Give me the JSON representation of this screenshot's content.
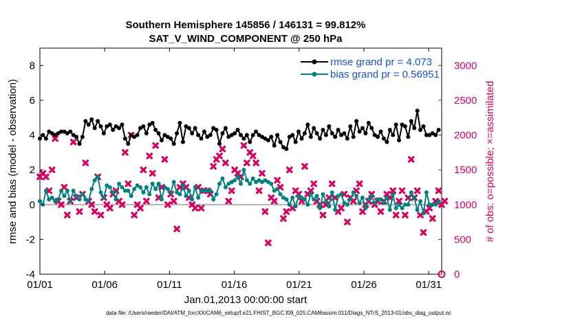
{
  "chart_data": {
    "type": "line",
    "title": "Southern Hemisphere 145856 / 146131 = 99.812%",
    "subtitle": "SAT_V_WIND_COMPONENT @ 250 hPa",
    "xlabel": "Jan.01,2013 00:00:00 start",
    "ylabel": "rmse and bias (model - observation)",
    "y2label": "# of obs: o=possible; ×=assimilated",
    "ylim": [
      -4,
      9
    ],
    "y2lim": [
      0,
      3250
    ],
    "yticks": [
      "-4",
      "-2",
      "0",
      "2",
      "4",
      "6",
      "8"
    ],
    "y2ticks": [
      "0",
      "500",
      "1000",
      "1500",
      "2000",
      "2500",
      "3000"
    ],
    "xticks": [
      "01/01",
      "01/06",
      "01/11",
      "01/16",
      "01/21",
      "01/26",
      "01/31"
    ],
    "xtick_days": [
      1,
      6,
      11,
      16,
      21,
      26,
      31
    ],
    "xlim": [
      1,
      32
    ],
    "footnote": "data file: /Users/raeder/DAI/ATM_forcXX/CAM6_setup/f.e21.FHIST_BGC.f09_025.CAM6assim.011/Diags_NTrS_2013-01/obs_diag_output.nc",
    "colors": {
      "rmse": "#000000",
      "bias": "#008080",
      "obs": "#d6005f",
      "legend_text": "#1a4fd6",
      "zero_line": "#b0b0b0"
    },
    "series": [
      {
        "name": "rmse grand pr = 4.073",
        "values": [
          3.8,
          4.0,
          3.8,
          4.2,
          4.1,
          4.0,
          4.1,
          4.2,
          4.2,
          4.1,
          4.2,
          4.0,
          3.9,
          3.5,
          3.9,
          4.8,
          4.6,
          4.9,
          4.4,
          4.8,
          4.5,
          4.1,
          4.5,
          4.6,
          4.3,
          4.5,
          4.4,
          4.6,
          3.8,
          3.5,
          4.0,
          3.9,
          4.0,
          4.4,
          4.5,
          4.1,
          4.6,
          4.7,
          4.3,
          4.1,
          3.7,
          4.0,
          3.9,
          3.8,
          3.5,
          4.1,
          4.7,
          3.6,
          4.5,
          4.4,
          4.1,
          4.4,
          4.0,
          3.8,
          4.2,
          3.9,
          4.0,
          4.4,
          4.3,
          3.5,
          4.1,
          4.4,
          3.9,
          4.0,
          4.1,
          4.3,
          4.0,
          3.8,
          4.0,
          3.6,
          4.0,
          4.2,
          4.0,
          3.9,
          3.8,
          3.7,
          3.9,
          3.4,
          4.0,
          3.6,
          3.3,
          3.2,
          3.9,
          4.0,
          3.6,
          4.2,
          3.8,
          4.1,
          4.6,
          3.9,
          4.4,
          4.1,
          3.8,
          4.3,
          4.0,
          4.5,
          4.1,
          3.9,
          4.3,
          4.0,
          4.1,
          3.8,
          4.5,
          3.9,
          4.8,
          4.2,
          4.4,
          4.1,
          4.7,
          4.4,
          4.0,
          3.9,
          4.2,
          3.8,
          3.6,
          4.3,
          4.0,
          4.6,
          3.7,
          4.6,
          4.5,
          3.9,
          4.8,
          4.4,
          5.4,
          4.3,
          4.5,
          4.0,
          4.0,
          4.1,
          4.0,
          4.3
        ]
      },
      {
        "name": "bias grand pr = 0.56951",
        "values": [
          0.2,
          0.0,
          0.8,
          0.3,
          0.4,
          0.2,
          0.3,
          0.8,
          0.5,
          0.8,
          0.2,
          0.8,
          0.5,
          0.3,
          0.6,
          0.3,
          0.2,
          0.9,
          1.4,
          1.6,
          0.7,
          0.4,
          1.1,
          1.0,
          0.7,
          0.3,
          1.2,
          1.0,
          0.8,
          0.8,
          0.5,
          0.9,
          1.1,
          1.0,
          0.7,
          1.0,
          0.6,
          1.2,
          0.9,
          1.2,
          0.3,
          1.0,
          0.9,
          0.7,
          1.3,
          0.7,
          0.6,
          1.1,
          0.5,
          0.8,
          0.3,
          1.0,
          0.4,
          0.8,
          0.8,
          0.8,
          0.8,
          0.3,
          0.6,
          1.2,
          1.5,
          1.0,
          1.2,
          1.3,
          1.4,
          1.6,
          1.2,
          2.0,
          1.4,
          1.2,
          1.5,
          1.3,
          1.4,
          1.3,
          1.4,
          1.3,
          1.2,
          0.8,
          0.9,
          0.6,
          0.4,
          0.3,
          0.0,
          0.4,
          -0.1,
          0.5,
          0.4,
          0.3,
          0.0,
          0.6,
          0.3,
          0.5,
          -0.2,
          0.6,
          0.2,
          -0.1,
          0.7,
          -0.3,
          0.5,
          0.6,
          0.1,
          0.0,
          0.3,
          0.7,
          0.5,
          0.1,
          0.4,
          -0.2,
          0.3,
          0.5,
          0.1,
          0.3,
          0.3,
          0.1,
          0.4,
          -0.3,
          0.6,
          -0.2,
          0.0,
          -0.2,
          0.0,
          0.0,
          0.7,
          0.4,
          -0.3,
          0.2,
          -0.5,
          0.7,
          0.0,
          0.0,
          0.0,
          0.2
        ]
      },
      {
        "name": "# of obs assimilated",
        "axis": "right",
        "values": [
          1400,
          1450,
          1400,
          1200,
          1500,
          1950,
          1050,
          1000,
          1250,
          850,
          1050,
          1900,
          1100,
          900,
          1150,
          1600,
          1050,
          1000,
          900,
          1400,
          850,
          1100,
          1000,
          950,
          1150,
          1200,
          1050,
          1000,
          1750,
          1300,
          2000,
          850,
          1000,
          950,
          1500,
          1050,
          1700,
          1450,
          1850,
          1100,
          1250,
          1650,
          1000,
          1150,
          1050,
          650,
          1250,
          1300,
          1250,
          1100,
          1000,
          950,
          1250,
          950,
          1200,
          1200,
          1150,
          1550,
          1650,
          1700,
          1800,
          1600,
          1050,
          1200,
          1500,
          1450,
          1400,
          1850,
          1600,
          1750,
          1700,
          1600,
          1200,
          1450,
          900,
          450,
          1100,
          1050,
          1350,
          1250,
          800,
          900,
          1500,
          950,
          1200,
          1150,
          1050,
          1550,
          1150,
          1200,
          1300,
          1050,
          1000,
          850,
          1000,
          1100,
          1300,
          1100,
          900,
          950,
          1150,
          750,
          1100,
          1050,
          1200,
          1300,
          900,
          1000,
          1050,
          1150,
          1000,
          1050,
          900,
          1050,
          1150,
          1100,
          1200,
          850,
          1050,
          1200,
          850,
          1100,
          1650,
          1100,
          1200,
          850,
          600,
          900,
          950,
          800,
          1050,
          1200,
          1000,
          1050
        ]
      }
    ],
    "legend": [
      {
        "label": "rmse grand pr = 4.073",
        "color": "#000000",
        "marker": "circle"
      },
      {
        "label": "bias grand pr = 0.56951",
        "color": "#008080",
        "marker": "circle"
      }
    ],
    "legend_position": "top-right"
  }
}
